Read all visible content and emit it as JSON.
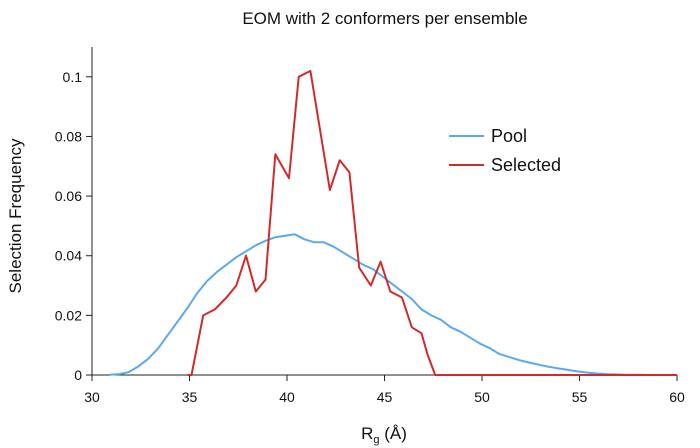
{
  "chart_data": {
    "type": "line",
    "title": "EOM with 2 conformers per ensemble",
    "xlabel_main": "R",
    "xlabel_sub": "g",
    "xlabel_suffix": " (Å)",
    "ylabel": "Selection Frequency",
    "xlim": [
      30,
      60
    ],
    "ylim": [
      0,
      0.11
    ],
    "x_ticks": [
      30,
      35,
      40,
      45,
      50,
      55,
      60
    ],
    "y_ticks": [
      0,
      0.02,
      0.04,
      0.06,
      0.08,
      0.1
    ],
    "x_tick_labels": [
      "30",
      "35",
      "40",
      "45",
      "50",
      "55",
      "60"
    ],
    "y_tick_labels": [
      "0",
      "0.02",
      "0.04",
      "0.06",
      "0.08",
      "0.1"
    ],
    "grid": false,
    "legend_position": "right",
    "series": [
      {
        "name": "Pool",
        "color": "#5aa9f0",
        "x": [
          30.9,
          31.4,
          31.9,
          32.4,
          32.9,
          33.4,
          33.9,
          34.4,
          34.9,
          35.4,
          35.9,
          36.4,
          36.9,
          37.4,
          37.9,
          38.4,
          38.9,
          39.4,
          39.9,
          40.4,
          40.9,
          41.4,
          41.9,
          42.4,
          42.9,
          43.4,
          43.9,
          44.4,
          44.9,
          45.4,
          45.9,
          46.4,
          46.9,
          47.4,
          47.9,
          48.4,
          48.9,
          49.4,
          49.9,
          50.4,
          50.9,
          51.4,
          51.9,
          52.4,
          52.9,
          53.4,
          53.9,
          54.4,
          54.9,
          55.4,
          55.9,
          56.4,
          56.9,
          57.4,
          57.9,
          58.4,
          58.9,
          59.4,
          59.9
        ],
        "values": [
          0.0001,
          0.0003,
          0.001,
          0.003,
          0.0055,
          0.009,
          0.0135,
          0.018,
          0.0225,
          0.0275,
          0.0315,
          0.0345,
          0.037,
          0.0395,
          0.0415,
          0.0435,
          0.045,
          0.0462,
          0.0467,
          0.0472,
          0.0455,
          0.0445,
          0.0445,
          0.043,
          0.041,
          0.039,
          0.037,
          0.0355,
          0.033,
          0.0305,
          0.028,
          0.0255,
          0.022,
          0.02,
          0.0185,
          0.016,
          0.0145,
          0.0125,
          0.0105,
          0.009,
          0.007,
          0.006,
          0.005,
          0.0042,
          0.0035,
          0.0028,
          0.0022,
          0.0017,
          0.0012,
          0.0008,
          0.0005,
          0.0003,
          0.0002,
          0.0001,
          0.0001,
          0.0,
          0.0,
          0.0,
          0.0
        ]
      },
      {
        "name": "Selected",
        "color": "#d12a2a",
        "x": [
          34.9,
          35.1,
          35.7,
          36.3,
          36.9,
          37.4,
          37.9,
          38.4,
          38.9,
          39.4,
          40.1,
          40.6,
          41.2,
          41.6,
          42.2,
          42.7,
          43.2,
          43.7,
          44.3,
          44.8,
          45.3,
          45.9,
          46.4,
          46.9,
          47.2,
          47.6,
          60
        ],
        "values": [
          0,
          0,
          0.02,
          0.022,
          0.026,
          0.03,
          0.04,
          0.028,
          0.032,
          0.074,
          0.066,
          0.1,
          0.102,
          0.086,
          0.062,
          0.072,
          0.068,
          0.036,
          0.03,
          0.038,
          0.028,
          0.026,
          0.016,
          0.014,
          0.007,
          0,
          0
        ]
      }
    ]
  }
}
